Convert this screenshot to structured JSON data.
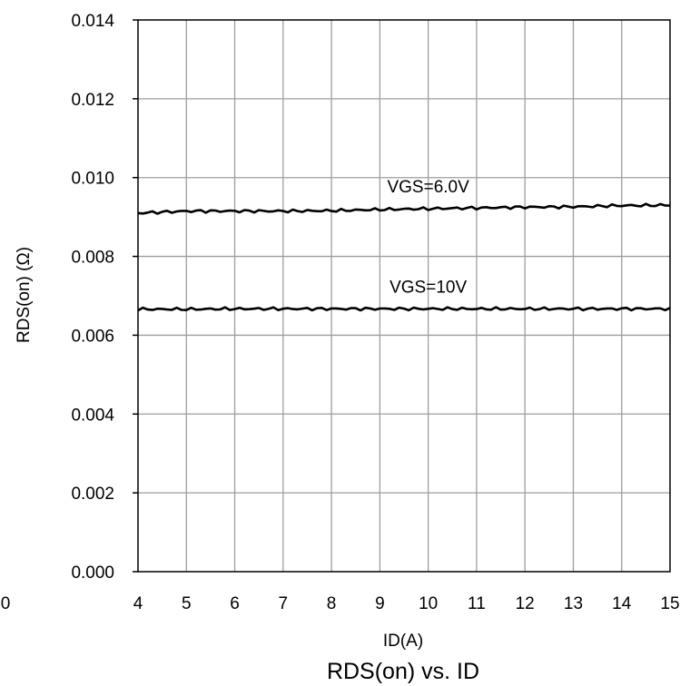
{
  "chart_data": {
    "type": "line",
    "title": "RDS(on) vs. ID",
    "xlabel": "ID(A)",
    "ylabel": "RDS(on) (Ω)",
    "xlim": [
      4,
      15
    ],
    "ylim": [
      0,
      0.014
    ],
    "x_ticks": [
      "4",
      "5",
      "6",
      "7",
      "8",
      "9",
      "10",
      "11",
      "12",
      "13",
      "14",
      "15"
    ],
    "y_ticks": [
      "0.000",
      "0.002",
      "0.004",
      "0.006",
      "0.008",
      "0.010",
      "0.012",
      "0.014"
    ],
    "stray_tick_label": "0",
    "grid": true,
    "series": [
      {
        "name": "VGS=6.0V",
        "x": [
          4,
          5,
          6,
          7,
          8,
          9,
          10,
          11,
          12,
          13,
          14,
          15
        ],
        "values": [
          0.0091,
          0.00915,
          0.00915,
          0.00915,
          0.00916,
          0.00919,
          0.00921,
          0.00923,
          0.00925,
          0.00926,
          0.00929,
          0.0093
        ]
      },
      {
        "name": "VGS=10V",
        "x": [
          4,
          5,
          6,
          7,
          8,
          9,
          10,
          11,
          12,
          13,
          14,
          15
        ],
        "values": [
          0.00666,
          0.00666,
          0.00667,
          0.00667,
          0.00667,
          0.00667,
          0.00667,
          0.00667,
          0.00667,
          0.00667,
          0.00667,
          0.00667
        ]
      }
    ],
    "colors": {
      "line": "#000000",
      "grid": "#9e9e9e",
      "axis": "#000000"
    }
  }
}
